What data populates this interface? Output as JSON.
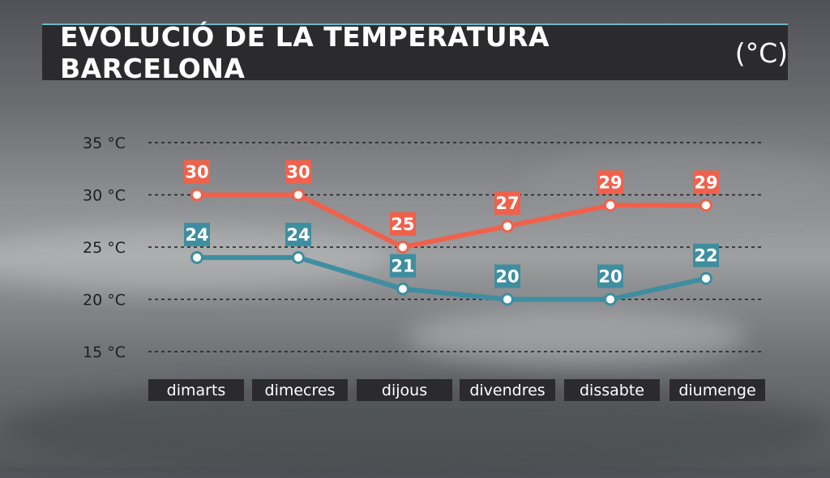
{
  "header": {
    "title": "EVOLUCIÓ DE LA TEMPERATURA BARCELONA",
    "unit": "(°C)"
  },
  "colors": {
    "max_series": "#f0614c",
    "min_series": "#3e8ea0",
    "title_bar": "#2b2b2d",
    "category_box": "#2b2b2d"
  },
  "chart_data": {
    "type": "line",
    "title": "EVOLUCIÓ DE LA TEMPERATURA BARCELONA (°C)",
    "categories": [
      "dimarts",
      "dimecres",
      "dijous",
      "divendres",
      "dissabte",
      "diumenge"
    ],
    "yticks": [
      "35 °C",
      "30 °C",
      "25 °C",
      "20 °C",
      "15 °C"
    ],
    "ytick_values": [
      35,
      30,
      25,
      20,
      15
    ],
    "ylim": [
      15,
      35
    ],
    "grid": true,
    "series": [
      {
        "key": "max",
        "values": [
          30,
          30,
          25,
          27,
          29,
          29
        ]
      },
      {
        "key": "min",
        "values": [
          24,
          24,
          21,
          20,
          20,
          22
        ]
      }
    ]
  }
}
